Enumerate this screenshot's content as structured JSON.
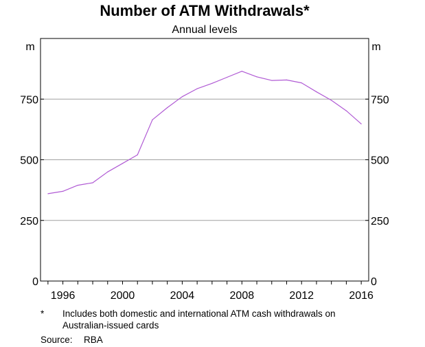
{
  "chart_data": {
    "type": "line",
    "title": "Number of ATM Withdrawals*",
    "subtitle": "Annual levels",
    "ylabel_left": "m",
    "ylabel_right": "m",
    "ylim": [
      0,
      1000
    ],
    "yticks": [
      0,
      250,
      500,
      750
    ],
    "xlim": [
      1994.5,
      2016.5
    ],
    "xticks": [
      1996,
      2000,
      2004,
      2008,
      2012,
      2016
    ],
    "grid": true,
    "series": [
      {
        "name": "ATM withdrawals",
        "color": "#b05ad4",
        "x": [
          1995,
          1996,
          1997,
          1998,
          1999,
          2000,
          2001,
          2002,
          2003,
          2004,
          2005,
          2006,
          2007,
          2008,
          2009,
          2010,
          2011,
          2012,
          2013,
          2014,
          2015,
          2016
        ],
        "values": [
          360,
          370,
          395,
          405,
          450,
          485,
          520,
          665,
          715,
          760,
          793,
          815,
          840,
          865,
          842,
          827,
          829,
          817,
          780,
          745,
          702,
          648
        ]
      }
    ]
  },
  "footnote": {
    "marker": "*",
    "text_line1": "Includes both domestic and international ATM cash withdrawals on",
    "text_line2": "Australian-issued cards"
  },
  "source": {
    "label": "Source:",
    "value": "RBA"
  }
}
